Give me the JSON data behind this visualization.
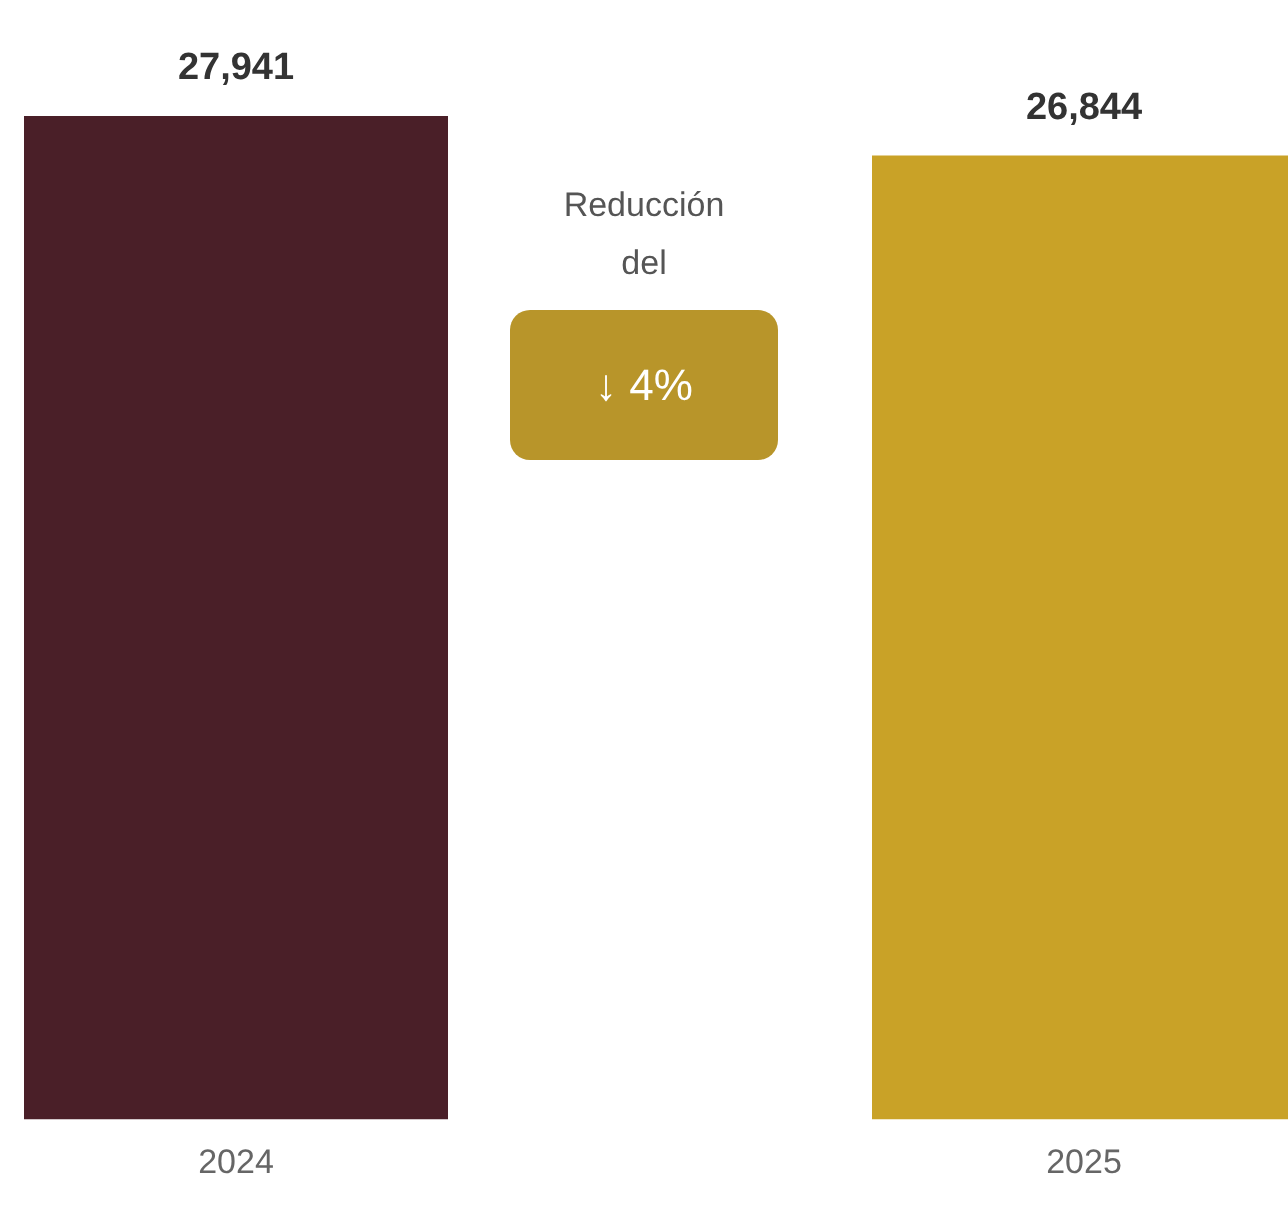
{
  "chart_data": {
    "type": "bar",
    "categories": [
      "2024",
      "2025"
    ],
    "values": [
      27941,
      26844
    ],
    "colors": [
      "#4a1f28",
      "#c9a227"
    ],
    "value_labels": [
      "27,941",
      "26,844"
    ],
    "grid": false,
    "legend": false,
    "annotations": [
      "Reducción del",
      "↓ 4%"
    ]
  }
}
